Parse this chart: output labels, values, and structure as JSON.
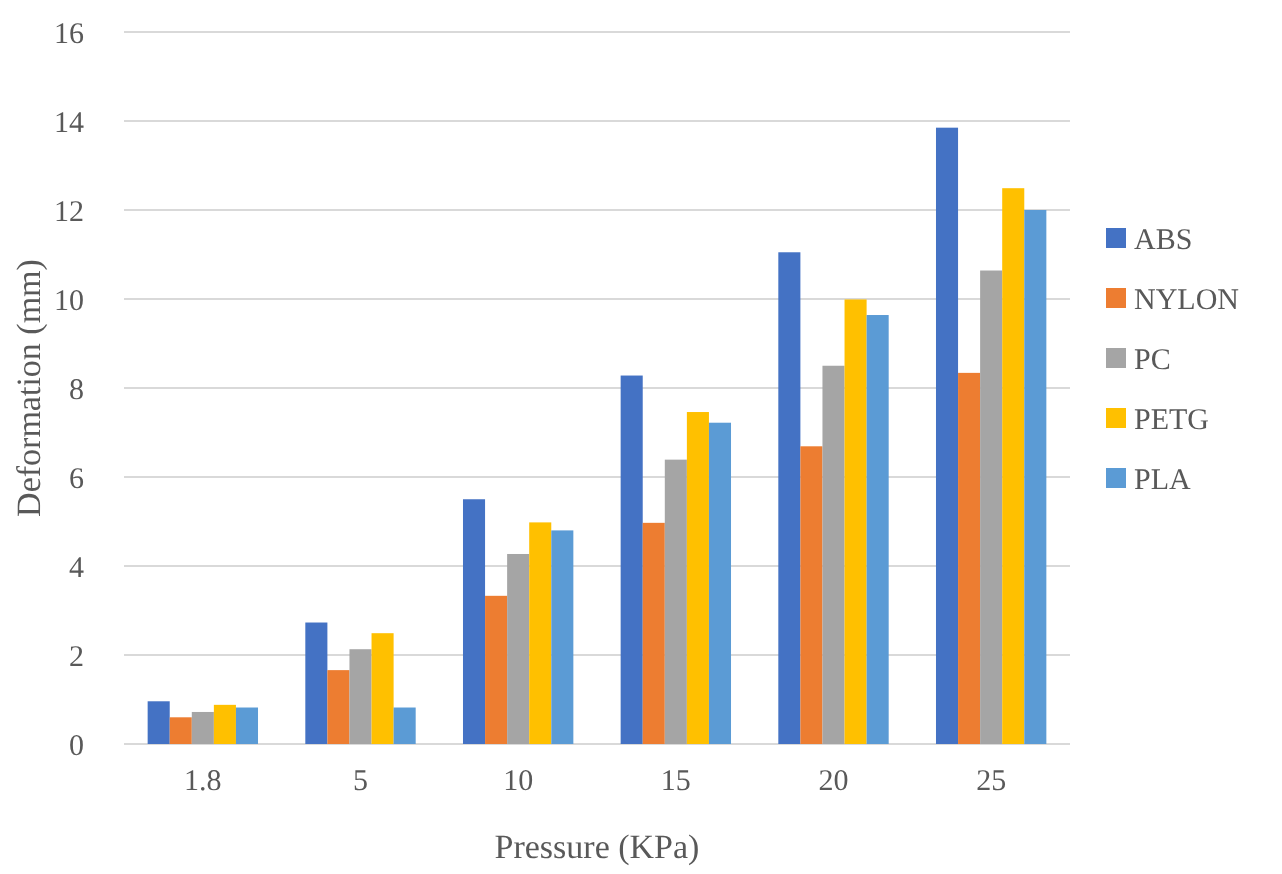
{
  "chart_data": {
    "type": "bar",
    "xlabel": "Pressure (KPa)",
    "ylabel": "Deformation (mm)",
    "categories": [
      "1.8",
      "5",
      "10",
      "15",
      "20",
      "25"
    ],
    "series": [
      {
        "name": "ABS",
        "color": "#4472c4",
        "values": [
          0.96,
          2.73,
          5.5,
          8.28,
          11.05,
          13.85
        ]
      },
      {
        "name": "NYLON",
        "color": "#ed7d31",
        "values": [
          0.6,
          1.66,
          3.33,
          4.97,
          6.69,
          8.34
        ]
      },
      {
        "name": "PC",
        "color": "#a5a5a5",
        "values": [
          0.72,
          2.13,
          4.27,
          6.39,
          8.5,
          10.64
        ]
      },
      {
        "name": "PETG",
        "color": "#ffc000",
        "values": [
          0.88,
          2.49,
          4.98,
          7.46,
          9.99,
          12.49
        ]
      },
      {
        "name": "PLA",
        "color": "#5b9bd5",
        "values": [
          0.82,
          0.82,
          4.8,
          7.22,
          9.64,
          12.0
        ]
      }
    ],
    "ylim": [
      0,
      16
    ],
    "yticks": [
      0,
      2,
      4,
      6,
      8,
      10,
      12,
      14,
      16
    ],
    "grid": "y",
    "legend": "right"
  }
}
